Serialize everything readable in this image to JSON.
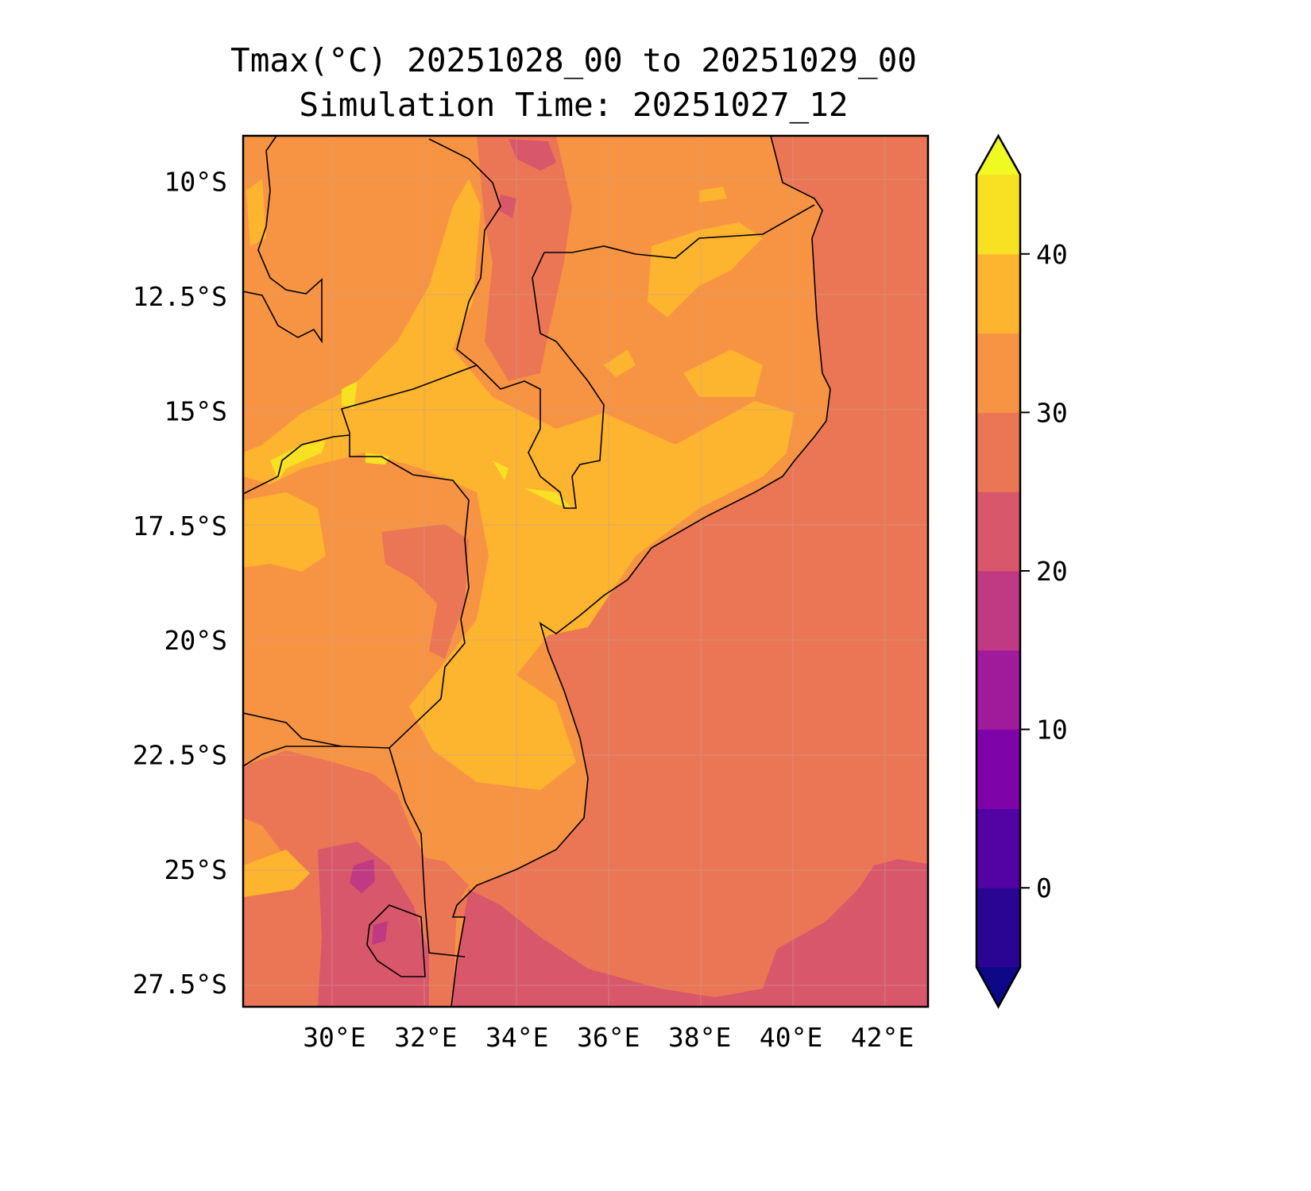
{
  "title": {
    "line1": "Tmax(°C) 20251028_00 to 20251029_00",
    "line2": "Simulation Time: 20251027_12"
  },
  "map": {
    "extent": {
      "lon": [
        28,
        43
      ],
      "lat": [
        -28,
        -9
      ]
    },
    "lon_ticks": [
      {
        "value": 30,
        "label": "30°E"
      },
      {
        "value": 32,
        "label": "32°E"
      },
      {
        "value": 34,
        "label": "34°E"
      },
      {
        "value": 36,
        "label": "36°E"
      },
      {
        "value": 38,
        "label": "38°E"
      },
      {
        "value": 40,
        "label": "40°E"
      },
      {
        "value": 42,
        "label": "42°E"
      }
    ],
    "lat_ticks": [
      {
        "value": -10,
        "label": "10°S"
      },
      {
        "value": -12.5,
        "label": "12.5°S"
      },
      {
        "value": -15,
        "label": "15°S"
      },
      {
        "value": -17.5,
        "label": "17.5°S"
      },
      {
        "value": -20,
        "label": "20°S"
      },
      {
        "value": -22.5,
        "label": "22.5°S"
      },
      {
        "value": -25,
        "label": "25°S"
      },
      {
        "value": -27.5,
        "label": "27.5°S"
      }
    ],
    "variable": "Tmax (°C)"
  },
  "colorbar": {
    "levels": [
      -5,
      0,
      5,
      10,
      15,
      20,
      25,
      30,
      35,
      40,
      45
    ],
    "colors": [
      "#2a0593",
      "#5302a3",
      "#7e03a8",
      "#a01a9c",
      "#c03a83",
      "#d8576b",
      "#eb7655",
      "#f79443",
      "#fdb42f",
      "#f8e122"
    ],
    "under_color": "#0d0887",
    "over_color": "#f0f921",
    "ticks": [
      {
        "value": 0,
        "label": "0"
      },
      {
        "value": 10,
        "label": "10"
      },
      {
        "value": 20,
        "label": "20"
      },
      {
        "value": 30,
        "label": "30"
      },
      {
        "value": 40,
        "label": "40"
      }
    ]
  }
}
